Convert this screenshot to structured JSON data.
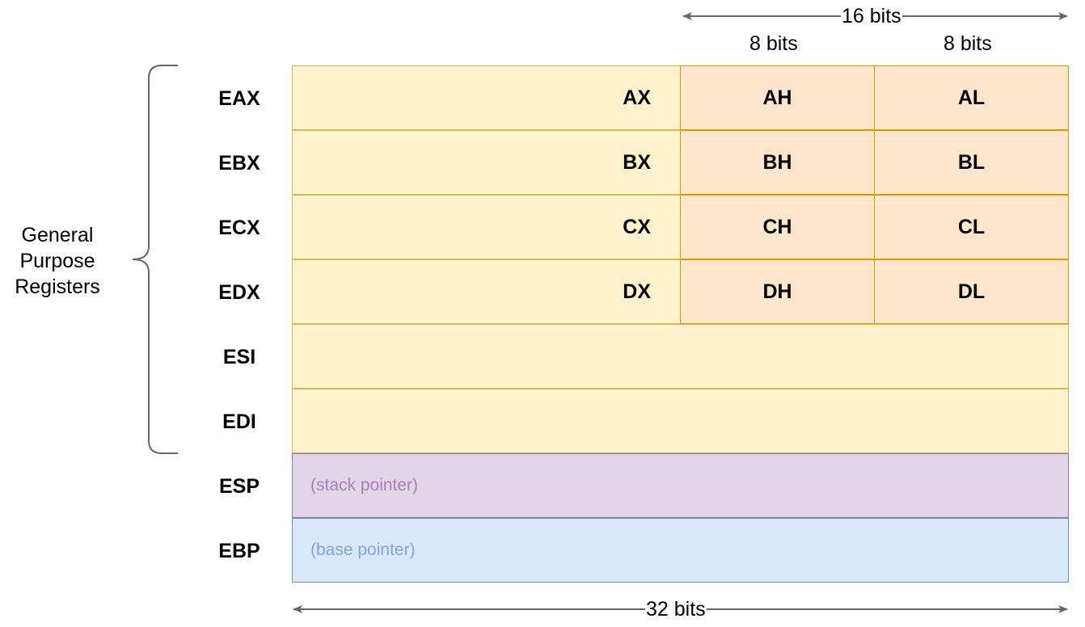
{
  "brace_label": [
    "General",
    "Purpose",
    "Registers"
  ],
  "bits_16": "16 bits",
  "bits_8_high": "8 bits",
  "bits_8_low": "8 bits",
  "bits_32": "32 bits",
  "registers": [
    {
      "name": "EAX",
      "sub16": "AX",
      "high": "AH",
      "low": "AL"
    },
    {
      "name": "EBX",
      "sub16": "BX",
      "high": "BH",
      "low": "BL"
    },
    {
      "name": "ECX",
      "sub16": "CX",
      "high": "CH",
      "low": "CL"
    },
    {
      "name": "EDX",
      "sub16": "DX",
      "high": "DH",
      "low": "DL"
    },
    {
      "name": "ESI"
    },
    {
      "name": "EDI"
    },
    {
      "name": "ESP",
      "note": "(stack pointer)"
    },
    {
      "name": "EBP",
      "note": "(base pointer)"
    }
  ],
  "colors": {
    "general_fill": "#fff2cc",
    "general_border": "#d6b656",
    "byte_fill": "#ffe6cc",
    "byte_border": "#d79b00",
    "stack_fill": "#e1d5e7",
    "stack_border": "#9673a6",
    "base_fill": "#dae8fc",
    "base_border": "#6c8ebf"
  }
}
